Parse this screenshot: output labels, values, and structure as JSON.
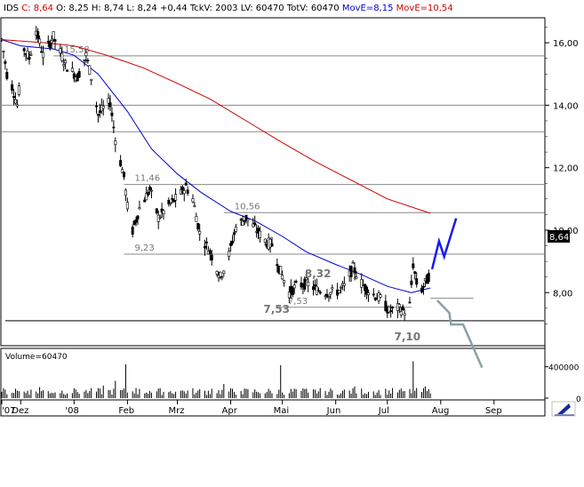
{
  "header": {
    "symbol_prefix": "IDS",
    "close_label": "C: 8,64",
    "open_label": "O: 8,25",
    "high_label": "H: 8,74",
    "low_label": "L: 8,24",
    "change_label": "+0,44",
    "tickv_label": "TckV: 2003",
    "lv_label": "LV: 60470",
    "totv_label": "TotV: 60470",
    "move1_label": "MovE=8,15",
    "move2_label": "MovE=10,54",
    "colors": {
      "close": "#cc0000",
      "ma_fast": "#0000cc",
      "ma_slow": "#cc0000",
      "text": "#000000"
    }
  },
  "volume_label": "Volume=60470",
  "price_badge": "8,64",
  "chart_data": [
    {
      "type": "candlestick",
      "y_scale": "linear",
      "ylim": [
        6.3,
        16.8
      ],
      "y_ticks": [
        "16,00",
        "14,00",
        "12,00",
        "10,00",
        "8,00"
      ],
      "y_tick_values": [
        16,
        14,
        12,
        10,
        8
      ],
      "x_tick_labels": [
        "'07",
        "Dez",
        "'08",
        "Feb",
        "Mrz",
        "Apr",
        "Mai",
        "Jun",
        "Jul",
        "Aug",
        "Sep"
      ],
      "x_range": [
        "2007-11-20",
        "2008-09-30"
      ],
      "x_tick_dates": [
        "2007-11-20",
        "2007-12-01",
        "2008-01-01",
        "2008-02-01",
        "2008-03-01",
        "2008-04-01",
        "2008-05-01",
        "2008-06-01",
        "2008-07-01",
        "2008-08-01",
        "2008-09-01"
      ],
      "grid": false,
      "price_path": [
        [
          "2007-11-20",
          16.1
        ],
        [
          "2007-11-23",
          15.0
        ],
        [
          "2007-11-26",
          14.6
        ],
        [
          "2007-11-29",
          14.0
        ],
        [
          "2007-12-03",
          15.8
        ],
        [
          "2007-12-06",
          15.5
        ],
        [
          "2007-12-10",
          16.4
        ],
        [
          "2007-12-14",
          15.6
        ],
        [
          "2007-12-20",
          16.2
        ],
        [
          "2007-12-27",
          15.3
        ],
        [
          "2008-01-03",
          14.9
        ],
        [
          "2008-01-08",
          15.6
        ],
        [
          "2008-01-11",
          14.9
        ],
        [
          "2008-01-15",
          13.7
        ],
        [
          "2008-01-18",
          13.9
        ],
        [
          "2008-01-22",
          14.1
        ],
        [
          "2008-01-25",
          12.9
        ],
        [
          "2008-01-30",
          11.7
        ],
        [
          "2008-02-03",
          9.8
        ],
        [
          "2008-02-08",
          10.7
        ],
        [
          "2008-02-14",
          11.3
        ],
        [
          "2008-02-19",
          10.4
        ],
        [
          "2008-02-25",
          10.8
        ],
        [
          "2008-03-02",
          11.1
        ],
        [
          "2008-03-06",
          11.4
        ],
        [
          "2008-03-10",
          11.0
        ],
        [
          "2008-03-14",
          9.9
        ],
        [
          "2008-03-20",
          9.3
        ],
        [
          "2008-03-26",
          8.5
        ],
        [
          "2008-03-30",
          9.0
        ],
        [
          "2008-04-04",
          10.1
        ],
        [
          "2008-04-10",
          10.4
        ],
        [
          "2008-04-16",
          10.0
        ],
        [
          "2008-04-22",
          9.6
        ],
        [
          "2008-04-26",
          9.5
        ],
        [
          "2008-04-29",
          8.8
        ],
        [
          "2008-05-05",
          8.0
        ],
        [
          "2008-05-09",
          8.2
        ],
        [
          "2008-05-15",
          8.3
        ],
        [
          "2008-05-21",
          8.1
        ],
        [
          "2008-05-27",
          8.0
        ],
        [
          "2008-06-01",
          8.0
        ],
        [
          "2008-06-06",
          8.2
        ],
        [
          "2008-06-11",
          8.8
        ],
        [
          "2008-06-16",
          8.3
        ],
        [
          "2008-06-21",
          8.0
        ],
        [
          "2008-06-27",
          7.8
        ],
        [
          "2008-07-02",
          7.4
        ],
        [
          "2008-07-07",
          7.5
        ],
        [
          "2008-07-11",
          7.4
        ],
        [
          "2008-07-14",
          7.6
        ],
        [
          "2008-07-16",
          8.9
        ],
        [
          "2008-07-18",
          8.3
        ],
        [
          "2008-07-21",
          8.1
        ],
        [
          "2008-07-24",
          8.4
        ],
        [
          "2008-07-26",
          8.64
        ]
      ],
      "moving_averages": [
        {
          "name": "MovE=8,15",
          "color": "#0000cc",
          "points": [
            [
              "2007-11-20",
              16.1
            ],
            [
              "2007-12-01",
              15.9
            ],
            [
              "2007-12-20",
              15.8
            ],
            [
              "2008-01-01",
              15.6
            ],
            [
              "2008-01-15",
              15.0
            ],
            [
              "2008-02-01",
              13.8
            ],
            [
              "2008-02-15",
              12.6
            ],
            [
              "2008-03-01",
              11.8
            ],
            [
              "2008-03-15",
              11.2
            ],
            [
              "2008-04-01",
              10.6
            ],
            [
              "2008-04-15",
              10.3
            ],
            [
              "2008-05-01",
              9.8
            ],
            [
              "2008-05-15",
              9.3
            ],
            [
              "2008-06-01",
              8.9
            ],
            [
              "2008-06-15",
              8.6
            ],
            [
              "2008-07-01",
              8.2
            ],
            [
              "2008-07-15",
              8.0
            ],
            [
              "2008-07-26",
              8.15
            ]
          ]
        },
        {
          "name": "MovE=10,54",
          "color": "#cc0000",
          "points": [
            [
              "2007-11-20",
              16.1
            ],
            [
              "2007-12-15",
              16.0
            ],
            [
              "2008-01-01",
              15.9
            ],
            [
              "2008-01-20",
              15.6
            ],
            [
              "2008-02-10",
              15.2
            ],
            [
              "2008-03-01",
              14.7
            ],
            [
              "2008-03-20",
              14.2
            ],
            [
              "2008-04-10",
              13.5
            ],
            [
              "2008-05-01",
              12.8
            ],
            [
              "2008-05-20",
              12.2
            ],
            [
              "2008-06-10",
              11.6
            ],
            [
              "2008-07-01",
              11.0
            ],
            [
              "2008-07-26",
              10.54
            ]
          ]
        }
      ],
      "horizontal_levels": [
        {
          "value": 15.58,
          "label": "15,58",
          "start": "2007-12-20",
          "end": "2008-09-30"
        },
        {
          "value": 14.0,
          "label": "",
          "start": "2007-11-20",
          "end": "2008-09-30"
        },
        {
          "value": 13.15,
          "label": "",
          "start": "2007-11-20",
          "end": "2008-09-30"
        },
        {
          "value": 11.46,
          "label": "11,46",
          "start": "2008-01-30",
          "end": "2008-09-30"
        },
        {
          "value": 10.56,
          "label": "10,56",
          "start": "2008-03-28",
          "end": "2008-09-30"
        },
        {
          "value": 9.23,
          "label": "9,23",
          "start": "2008-01-30",
          "end": "2008-09-30"
        },
        {
          "value": 7.82,
          "label": "",
          "start": "2008-07-26",
          "end": "2008-08-20"
        },
        {
          "value": 7.53,
          "label": "7,53",
          "start": "2008-04-28",
          "end": "2008-07-15"
        },
        {
          "value": 7.1,
          "label": "",
          "start": "2007-11-22",
          "end": "2008-09-30"
        }
      ],
      "annotations": [
        {
          "text": "8,32",
          "x": "2008-05-14",
          "y": 8.32
        },
        {
          "text": "7,53",
          "x": "2008-04-20",
          "y": 7.53
        },
        {
          "text": "7,10",
          "x": "2008-07-05",
          "y": 7.1
        }
      ],
      "projection_up": {
        "color": "#1a1aee",
        "points": [
          [
            "2008-07-27",
            8.75
          ],
          [
            "2008-07-31",
            9.65
          ],
          [
            "2008-08-03",
            9.15
          ],
          [
            "2008-08-10",
            10.38
          ]
        ]
      },
      "projection_down": {
        "color": "#8aa0a6",
        "points": [
          [
            "2008-07-30",
            7.75
          ],
          [
            "2008-08-06",
            7.35
          ],
          [
            "2008-08-07",
            6.98
          ],
          [
            "2008-08-14",
            6.98
          ],
          [
            "2008-08-25",
            5.6
          ]
        ]
      }
    },
    {
      "type": "bar",
      "name": "Volume",
      "ylim": [
        0,
        600000
      ],
      "y_ticks": [
        "400000",
        "0"
      ],
      "y_tick_values": [
        400000,
        0
      ],
      "values_note_free": true,
      "volume_points": [
        [
          "2007-11-20",
          80000
        ],
        [
          "2007-11-28",
          120000
        ],
        [
          "2007-12-05",
          95000
        ],
        [
          "2007-12-12",
          140000
        ],
        [
          "2007-12-19",
          70000
        ],
        [
          "2008-01-02",
          110000
        ],
        [
          "2008-01-10",
          90000
        ],
        [
          "2008-01-18",
          160000
        ],
        [
          "2008-01-25",
          220000
        ],
        [
          "2008-01-31",
          430000
        ],
        [
          "2008-02-06",
          130000
        ],
        [
          "2008-02-14",
          90000
        ],
        [
          "2008-02-22",
          80000
        ],
        [
          "2008-03-03",
          95000
        ],
        [
          "2008-03-12",
          70000
        ],
        [
          "2008-03-21",
          120000
        ],
        [
          "2008-03-28",
          180000
        ],
        [
          "2008-04-07",
          90000
        ],
        [
          "2008-04-17",
          75000
        ],
        [
          "2008-04-25",
          60000
        ],
        [
          "2008-04-30",
          420000
        ],
        [
          "2008-05-08",
          120000
        ],
        [
          "2008-05-16",
          70000
        ],
        [
          "2008-05-26",
          90000
        ],
        [
          "2008-06-04",
          60000
        ],
        [
          "2008-06-12",
          150000
        ],
        [
          "2008-06-20",
          80000
        ],
        [
          "2008-06-28",
          130000
        ],
        [
          "2008-07-06",
          110000
        ],
        [
          "2008-07-11",
          90000
        ],
        [
          "2008-07-16",
          470000
        ],
        [
          "2008-07-19",
          200000
        ],
        [
          "2008-07-23",
          150000
        ],
        [
          "2008-07-26",
          60470
        ]
      ]
    }
  ]
}
